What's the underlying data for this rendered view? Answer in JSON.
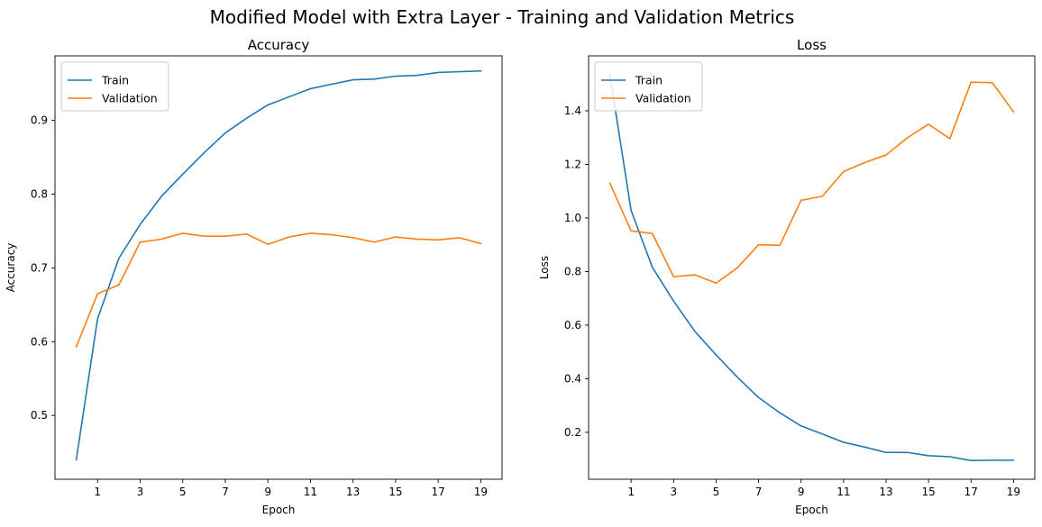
{
  "figure": {
    "suptitle": "Modified Model with Extra Layer - Training and Validation Metrics"
  },
  "colors": {
    "train": "#1f77b4",
    "validation": "#ff7f0e",
    "axes": "#000000",
    "legend_border": "#cccccc"
  },
  "chart_data": [
    {
      "type": "line",
      "title": "Accuracy",
      "xlabel": "Epoch",
      "ylabel": "Accuracy",
      "x": [
        0,
        1,
        2,
        3,
        4,
        5,
        6,
        7,
        8,
        9,
        10,
        11,
        12,
        13,
        14,
        15,
        16,
        17,
        18,
        19
      ],
      "xticks": [
        1,
        3,
        5,
        7,
        9,
        11,
        13,
        15,
        17,
        19
      ],
      "yticks": [
        0.5,
        0.6,
        0.7,
        0.8,
        0.9
      ],
      "ytick_labels": [
        "0.5",
        "0.6",
        "0.7",
        "0.8",
        "0.9"
      ],
      "xlim": [
        -1,
        20
      ],
      "ylim": [
        0.4135,
        0.9875
      ],
      "legend_position": "upper left",
      "grid": false,
      "series": [
        {
          "name": "Train",
          "color_key": "train",
          "values": [
            0.44,
            0.631,
            0.713,
            0.759,
            0.797,
            0.827,
            0.856,
            0.883,
            0.903,
            0.921,
            0.932,
            0.943,
            0.949,
            0.955,
            0.956,
            0.96,
            0.961,
            0.965,
            0.966,
            0.967
          ]
        },
        {
          "name": "Validation",
          "color_key": "validation",
          "values": [
            0.593,
            0.665,
            0.677,
            0.735,
            0.739,
            0.747,
            0.743,
            0.743,
            0.746,
            0.732,
            0.742,
            0.747,
            0.745,
            0.741,
            0.735,
            0.742,
            0.739,
            0.738,
            0.741,
            0.733
          ]
        }
      ]
    },
    {
      "type": "line",
      "title": "Loss",
      "xlabel": "Epoch",
      "ylabel": "Loss",
      "x": [
        0,
        1,
        2,
        3,
        4,
        5,
        6,
        7,
        8,
        9,
        10,
        11,
        12,
        13,
        14,
        15,
        16,
        17,
        18,
        19
      ],
      "xticks": [
        1,
        3,
        5,
        7,
        9,
        11,
        13,
        15,
        17,
        19
      ],
      "yticks": [
        0.2,
        0.4,
        0.6,
        0.8,
        1.0,
        1.2,
        1.4
      ],
      "ytick_labels": [
        "0.2",
        "0.4",
        "0.6",
        "0.8",
        "1.0",
        "1.2",
        "1.4"
      ],
      "xlim": [
        -1,
        20
      ],
      "ylim": [
        0.025,
        1.605
      ],
      "legend_position": "upper left",
      "grid": false,
      "series": [
        {
          "name": "Train",
          "color_key": "train",
          "values": [
            1.535,
            1.028,
            0.816,
            0.69,
            0.577,
            0.489,
            0.406,
            0.33,
            0.273,
            0.224,
            0.194,
            0.163,
            0.145,
            0.125,
            0.125,
            0.113,
            0.109,
            0.095,
            0.096,
            0.096
          ]
        },
        {
          "name": "Validation",
          "color_key": "validation",
          "values": [
            1.13,
            0.952,
            0.942,
            0.781,
            0.788,
            0.757,
            0.814,
            0.9,
            0.898,
            1.066,
            1.081,
            1.173,
            1.207,
            1.235,
            1.299,
            1.35,
            1.296,
            1.507,
            1.505,
            1.396
          ]
        }
      ]
    }
  ]
}
